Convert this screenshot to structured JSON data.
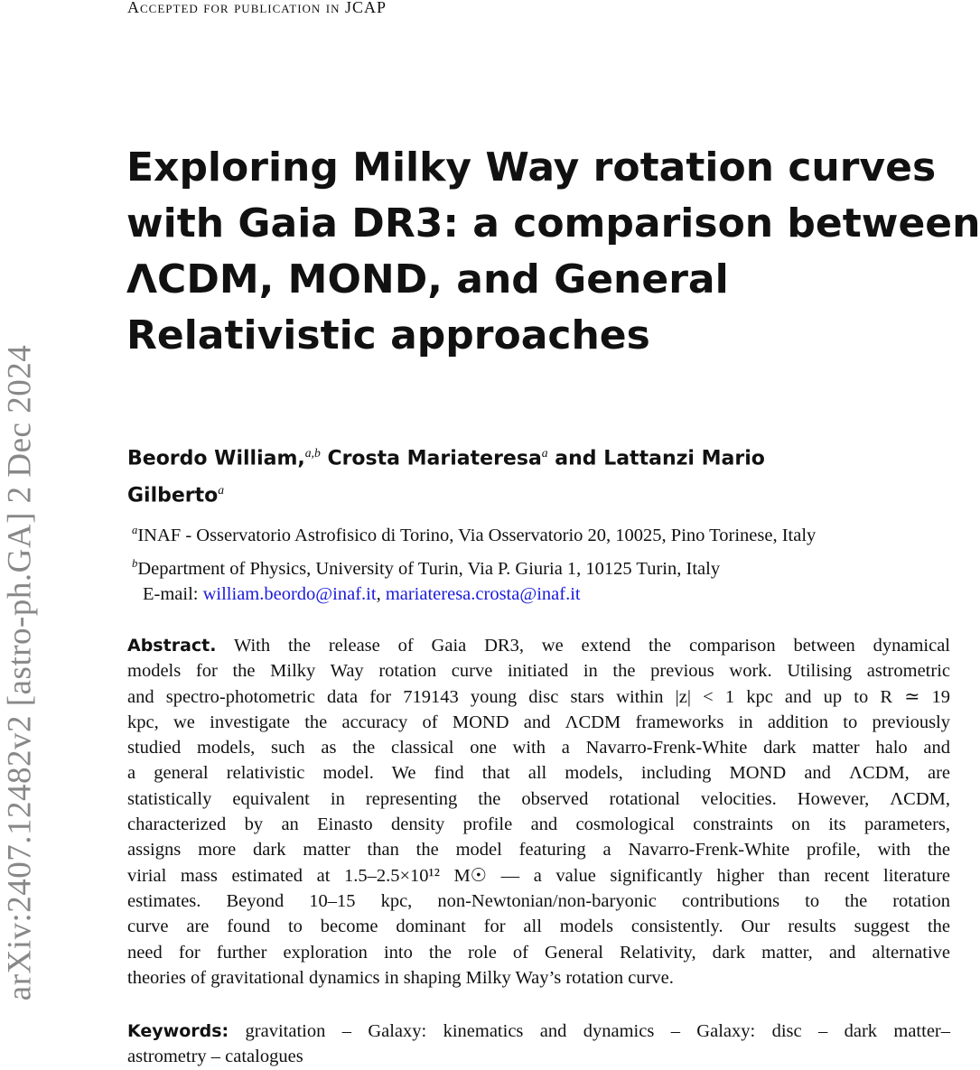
{
  "header": "Accepted for publication in JCAP",
  "arxiv_stamp": "arXiv:2407.12482v2  [astro-ph.GA]  2 Dec 2024",
  "title_lines": [
    "Exploring Milky Way rotation curves",
    "with Gaia DR3: a comparison between",
    "ΛCDM, MOND, and General",
    "Relativistic approaches"
  ],
  "authors": {
    "a1": "Beordo William,",
    "a1_sup": "a,b",
    "a2": "Crosta Mariateresa",
    "a2_sup": "a",
    "a3": "and Lattanzi Mario",
    "a3b": "Gilberto",
    "a3_sup": "a"
  },
  "affiliations": [
    {
      "mark": "a",
      "text": "INAF - Osservatorio Astrofisico di Torino, Via Osservatorio 20, 10025, Pino Torinese, Italy"
    },
    {
      "mark": "b",
      "text": "Department of Physics, University of Turin, Via P. Giuria 1, 10125 Turin, Italy"
    }
  ],
  "email": {
    "label": "E-mail:",
    "addresses": [
      "william.beordo@inaf.it",
      "mariateresa.crosta@inaf.it"
    ],
    "sep": ","
  },
  "abstract": {
    "label": "Abstract.",
    "lines": [
      "With the release of Gaia DR3, we extend the comparison between dynamical",
      "models for the Milky Way rotation curve initiated in the previous work. Utilising astrometric",
      "and spectro-photometric data for 719143 young disc stars within |z| < 1 kpc and up to R ≃ 19",
      "kpc, we investigate the accuracy of MOND and ΛCDM frameworks in addition to previously",
      "studied models, such as the classical one with a Navarro-Frenk-White dark matter halo and",
      "a general relativistic model.  We find that all models, including MOND and ΛCDM, are",
      "statistically equivalent in representing the observed rotational velocities. However, ΛCDM,",
      "characterized by an Einasto density profile and cosmological constraints on its parameters,",
      "assigns more dark matter than the model featuring a Navarro-Frenk-White profile, with the",
      "virial mass estimated at 1.5–2.5×10¹² M☉ — a value significantly higher than recent literature",
      "estimates.  Beyond 10–15 kpc, non-Newtonian/non-baryonic contributions to the rotation",
      "curve are found to become dominant for all models consistently.  Our results suggest the",
      "need for further exploration into the role of General Relativity, dark matter, and alternative",
      "theories of gravitational dynamics in shaping Milky Way’s rotation curve."
    ]
  },
  "keywords": {
    "label": "Keywords:",
    "lines": [
      "gravitation – Galaxy: kinematics and dynamics – Galaxy: disc – dark matter–",
      "astrometry – catalogues"
    ]
  }
}
